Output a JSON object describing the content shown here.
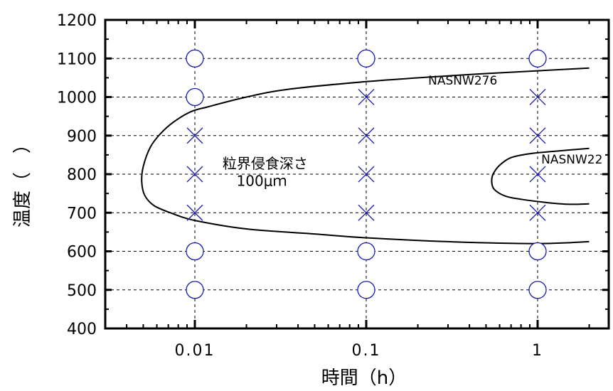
{
  "chart_data": {
    "type": "scatter",
    "title": "",
    "xlabel": "時間（h）",
    "ylabel": "温度（　）",
    "x_scale": "log",
    "xlim": [
      0.003,
      2.6
    ],
    "ylim": [
      400,
      1200
    ],
    "x_ticks": [
      "0.01",
      "0.1",
      "1"
    ],
    "y_ticks": [
      "400",
      "500",
      "600",
      "700",
      "800",
      "900",
      "1000",
      "1100",
      "1200"
    ],
    "grid": true,
    "series": [
      {
        "marker": "circle",
        "color": "#1a1ab4",
        "points": [
          {
            "x": 0.01,
            "y": 500
          },
          {
            "x": 0.01,
            "y": 600
          },
          {
            "x": 0.01,
            "y": 1000
          },
          {
            "x": 0.01,
            "y": 1100
          },
          {
            "x": 0.1,
            "y": 500
          },
          {
            "x": 0.1,
            "y": 600
          },
          {
            "x": 0.1,
            "y": 1100
          },
          {
            "x": 1,
            "y": 500
          },
          {
            "x": 1,
            "y": 600
          },
          {
            "x": 1,
            "y": 1100
          }
        ]
      },
      {
        "marker": "cross",
        "color": "#1a1ab4",
        "points": [
          {
            "x": 0.01,
            "y": 700
          },
          {
            "x": 0.01,
            "y": 800
          },
          {
            "x": 0.01,
            "y": 900
          },
          {
            "x": 0.1,
            "y": 700
          },
          {
            "x": 0.1,
            "y": 800
          },
          {
            "x": 0.1,
            "y": 900
          },
          {
            "x": 0.1,
            "y": 1000
          },
          {
            "x": 1,
            "y": 700
          },
          {
            "x": 1,
            "y": 800
          },
          {
            "x": 1,
            "y": 900
          },
          {
            "x": 1,
            "y": 1000
          }
        ]
      }
    ],
    "curves": [
      {
        "name": "NASNW276",
        "points": [
          [
            2.0,
            1075
          ],
          [
            1.0,
            1068
          ],
          [
            0.3,
            1055
          ],
          [
            0.1,
            1040
          ],
          [
            0.035,
            1020
          ],
          [
            0.02,
            1000
          ],
          [
            0.012,
            975
          ],
          [
            0.0095,
            962
          ],
          [
            0.0075,
            935
          ],
          [
            0.0063,
            905
          ],
          [
            0.0055,
            870
          ],
          [
            0.005,
            820
          ],
          [
            0.0049,
            780
          ],
          [
            0.0051,
            745
          ],
          [
            0.0058,
            718
          ],
          [
            0.0075,
            697
          ],
          [
            0.01,
            680
          ],
          [
            0.02,
            658
          ],
          [
            0.05,
            645
          ],
          [
            0.1,
            635
          ],
          [
            0.3,
            625
          ],
          [
            1.0,
            620
          ],
          [
            2.0,
            625
          ]
        ]
      },
      {
        "name": "NASNW22",
        "points": [
          [
            2.0,
            867
          ],
          [
            1.3,
            860
          ],
          [
            0.9,
            853
          ],
          [
            0.7,
            843
          ],
          [
            0.6,
            823
          ],
          [
            0.55,
            800
          ],
          [
            0.54,
            780
          ],
          [
            0.56,
            760
          ],
          [
            0.65,
            743
          ],
          [
            0.8,
            735
          ],
          [
            1.1,
            727
          ],
          [
            1.5,
            722
          ],
          [
            2.0,
            723
          ]
        ]
      }
    ],
    "annotations": [
      {
        "text": "NASNW276",
        "x": 0.23,
        "y": 1032,
        "size": 17
      },
      {
        "text": "NASNW22",
        "x": 1.05,
        "y": 828,
        "size": 17
      },
      {
        "text": "粒界侵食深さ",
        "x": 0.0145,
        "y": 815,
        "size": 20
      },
      {
        "text": "100μｍ",
        "x": 0.0175,
        "y": 770,
        "size": 20
      }
    ]
  }
}
